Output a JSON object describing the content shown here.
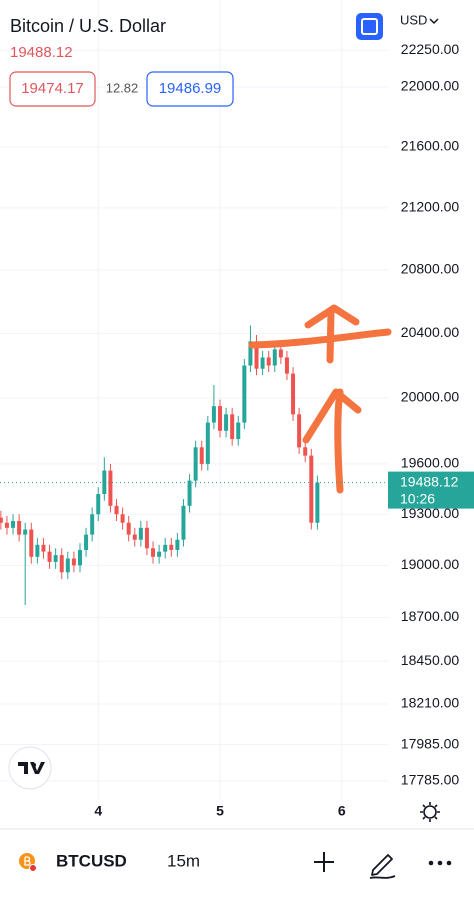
{
  "header": {
    "title": "Bitcoin / U.S. Dollar",
    "bid": 19474.17,
    "spread": 12.82,
    "ask": 19486.99,
    "currency": "USD"
  },
  "toolbar": {
    "symbol": "BTCUSD",
    "interval": "15m"
  },
  "chart_data": {
    "type": "candlestick",
    "x": [
      3.2,
      3.25,
      3.3,
      3.35,
      3.4,
      3.45,
      3.5,
      3.55,
      3.6,
      3.65,
      3.7,
      3.75,
      3.8,
      3.85,
      3.9,
      3.95,
      4.0,
      4.05,
      4.1,
      4.15,
      4.2,
      4.25,
      4.3,
      4.35,
      4.4,
      4.45,
      4.5,
      4.55,
      4.6,
      4.65,
      4.7,
      4.75,
      4.8,
      4.85,
      4.9,
      4.95,
      5.0,
      5.05,
      5.1,
      5.15,
      5.2,
      5.25,
      5.3,
      5.35,
      5.4,
      5.45,
      5.5,
      5.55,
      5.6,
      5.65,
      5.7,
      5.75,
      5.8
    ],
    "open": [
      19280,
      19250,
      19220,
      19260,
      19180,
      19210,
      19050,
      19120,
      19080,
      19020,
      19060,
      18960,
      19040,
      19000,
      19090,
      19180,
      19300,
      19420,
      19560,
      19350,
      19300,
      19250,
      19180,
      19150,
      19220,
      19100,
      19050,
      19080,
      19120,
      19090,
      19150,
      19350,
      19500,
      19700,
      19600,
      19850,
      19950,
      19800,
      19900,
      19750,
      19850,
      20200,
      20350,
      20180,
      20250,
      20200,
      20300,
      20250,
      20150,
      19900,
      19700,
      19650,
      19250
    ],
    "high": [
      19320,
      19290,
      19300,
      19300,
      19250,
      19250,
      19160,
      19160,
      19120,
      19100,
      19100,
      19080,
      19080,
      19130,
      19220,
      19340,
      19460,
      19640,
      19600,
      19390,
      19340,
      19290,
      19220,
      19260,
      19260,
      19140,
      19120,
      19160,
      19160,
      19190,
      19390,
      19540,
      19740,
      19740,
      19890,
      20080,
      19990,
      19940,
      19940,
      19890,
      20240,
      20450,
      20390,
      20290,
      20290,
      20340,
      20340,
      20290,
      20190,
      19940,
      19740,
      19690,
      19530
    ],
    "low": [
      19210,
      19180,
      19180,
      19140,
      18770,
      19010,
      19010,
      19040,
      18980,
      18980,
      18920,
      18920,
      18960,
      18960,
      19050,
      19140,
      19260,
      19380,
      19310,
      19260,
      19210,
      19140,
      19110,
      19110,
      19060,
      19010,
      19010,
      19040,
      19050,
      19050,
      19110,
      19310,
      19460,
      19560,
      19560,
      19810,
      19760,
      19760,
      19710,
      19710,
      19810,
      20160,
      20140,
      20140,
      20160,
      20160,
      20210,
      20110,
      19860,
      19660,
      19610,
      19210,
      19210
    ],
    "close": [
      19250,
      19220,
      19260,
      19180,
      19210,
      19050,
      19120,
      19080,
      19020,
      19060,
      18960,
      19040,
      19000,
      19090,
      19180,
      19300,
      19420,
      19560,
      19350,
      19300,
      19250,
      19180,
      19150,
      19220,
      19100,
      19050,
      19080,
      19120,
      19090,
      19150,
      19350,
      19500,
      19700,
      19600,
      19850,
      19950,
      19800,
      19900,
      19750,
      19850,
      20200,
      20350,
      20180,
      20250,
      20200,
      20300,
      20250,
      20150,
      19900,
      19700,
      19650,
      19250,
      19488.12
    ],
    "colors": {
      "up": "#26a69a",
      "down": "#ef5350"
    },
    "xlim": [
      3.193,
      6.38
    ],
    "xticks": [
      4,
      5,
      6
    ],
    "ylim": [
      17682,
      22594
    ],
    "log_scale": true,
    "grid": true,
    "yticks": [
      {
        "value": 22250,
        "label": "22250.00"
      },
      {
        "value": 22000,
        "label": "22000.00"
      },
      {
        "value": 21600,
        "label": "21600.00"
      },
      {
        "value": 21200,
        "label": "21200.00"
      },
      {
        "value": 20800,
        "label": "20800.00"
      },
      {
        "value": 20400,
        "label": "20400.00"
      },
      {
        "value": 20000,
        "label": "20000.00"
      },
      {
        "value": 19600,
        "label": "19600.00"
      },
      {
        "value": 19300,
        "label": "19300.00"
      },
      {
        "value": 19000,
        "label": "19000.00"
      },
      {
        "value": 18700,
        "label": "18700.00"
      },
      {
        "value": 18450,
        "label": "18450.00"
      },
      {
        "value": 18210,
        "label": "18210.00"
      },
      {
        "value": 17985,
        "label": "17985.00"
      },
      {
        "value": 17785,
        "label": "17785.00"
      }
    ],
    "last_price": 19488.12,
    "last_time": "10:26"
  }
}
